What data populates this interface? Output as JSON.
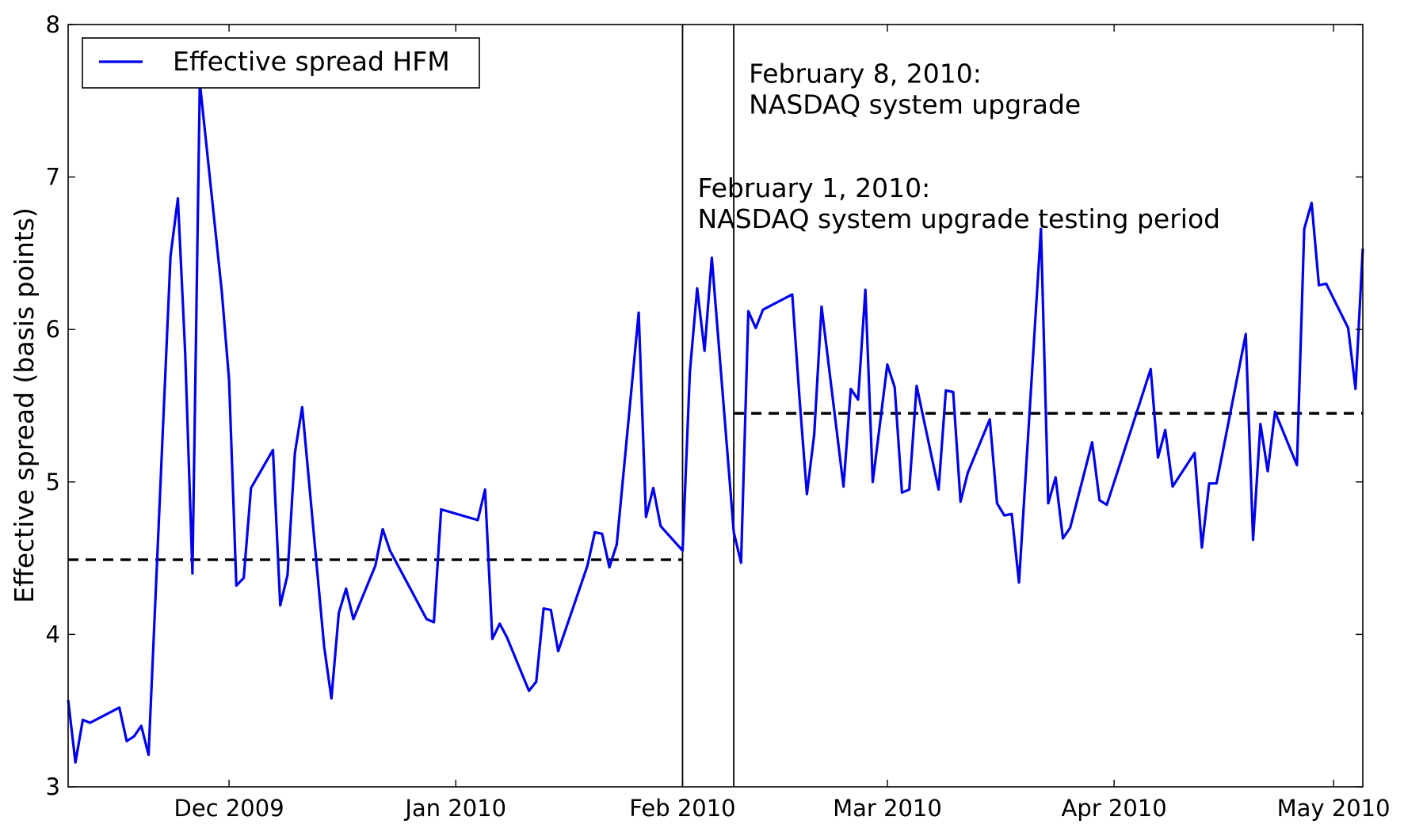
{
  "chart_data": {
    "type": "line",
    "title": "",
    "xlabel": "",
    "ylabel": "Effective spread (basis points)",
    "ylim": [
      3,
      8
    ],
    "xlim": [
      "2009-11-09",
      "2010-05-05"
    ],
    "x_ticks": [
      {
        "date": "2009-12-01",
        "label": "Dec 2009"
      },
      {
        "date": "2010-01-01",
        "label": "Jan 2010"
      },
      {
        "date": "2010-02-01",
        "label": "Feb 2010"
      },
      {
        "date": "2010-03-01",
        "label": "Mar 2010"
      },
      {
        "date": "2010-04-01",
        "label": "Apr 2010"
      },
      {
        "date": "2010-05-01",
        "label": "May 2010"
      }
    ],
    "y_ticks": [
      3,
      4,
      5,
      6,
      7,
      8
    ],
    "grid": false,
    "legend_position": "top-left",
    "series": [
      {
        "name": "Effective spread HFM",
        "color": "#0000ee",
        "points": [
          [
            "2009-11-09",
            3.57
          ],
          [
            "2009-11-10",
            3.16
          ],
          [
            "2009-11-11",
            3.44
          ],
          [
            "2009-11-12",
            3.42
          ],
          [
            "2009-11-16",
            3.52
          ],
          [
            "2009-11-17",
            3.3
          ],
          [
            "2009-11-18",
            3.33
          ],
          [
            "2009-11-19",
            3.4
          ],
          [
            "2009-11-20",
            3.21
          ],
          [
            "2009-11-23",
            6.48
          ],
          [
            "2009-11-24",
            6.86
          ],
          [
            "2009-11-25",
            5.85
          ],
          [
            "2009-11-26",
            4.4
          ],
          [
            "2009-11-27",
            7.62
          ],
          [
            "2009-11-30",
            6.25
          ],
          [
            "2009-12-01",
            5.67
          ],
          [
            "2009-12-02",
            4.32
          ],
          [
            "2009-12-03",
            4.37
          ],
          [
            "2009-12-04",
            4.96
          ],
          [
            "2009-12-07",
            5.21
          ],
          [
            "2009-12-08",
            4.19
          ],
          [
            "2009-12-09",
            4.39
          ],
          [
            "2009-12-10",
            5.19
          ],
          [
            "2009-12-11",
            5.49
          ],
          [
            "2009-12-14",
            3.92
          ],
          [
            "2009-12-15",
            3.58
          ],
          [
            "2009-12-16",
            4.14
          ],
          [
            "2009-12-17",
            4.3
          ],
          [
            "2009-12-18",
            4.1
          ],
          [
            "2009-12-21",
            4.45
          ],
          [
            "2009-12-22",
            4.69
          ],
          [
            "2009-12-23",
            4.55
          ],
          [
            "2009-12-28",
            4.1
          ],
          [
            "2009-12-29",
            4.08
          ],
          [
            "2009-12-30",
            4.82
          ],
          [
            "2010-01-04",
            4.75
          ],
          [
            "2010-01-05",
            4.95
          ],
          [
            "2010-01-06",
            3.97
          ],
          [
            "2010-01-07",
            4.07
          ],
          [
            "2010-01-08",
            3.98
          ],
          [
            "2010-01-11",
            3.63
          ],
          [
            "2010-01-12",
            3.69
          ],
          [
            "2010-01-13",
            4.17
          ],
          [
            "2010-01-14",
            4.16
          ],
          [
            "2010-01-15",
            3.89
          ],
          [
            "2010-01-19",
            4.45
          ],
          [
            "2010-01-20",
            4.67
          ],
          [
            "2010-01-21",
            4.66
          ],
          [
            "2010-01-22",
            4.44
          ],
          [
            "2010-01-23",
            4.59
          ],
          [
            "2010-01-26",
            6.11
          ],
          [
            "2010-01-27",
            4.77
          ],
          [
            "2010-01-28",
            4.96
          ],
          [
            "2010-01-29",
            4.71
          ],
          [
            "2010-02-01",
            4.55
          ],
          [
            "2010-02-02",
            5.72
          ],
          [
            "2010-02-03",
            6.27
          ],
          [
            "2010-02-04",
            5.86
          ],
          [
            "2010-02-05",
            6.47
          ],
          [
            "2010-02-08",
            4.67
          ],
          [
            "2010-02-09",
            4.47
          ],
          [
            "2010-02-10",
            6.12
          ],
          [
            "2010-02-11",
            6.01
          ],
          [
            "2010-02-12",
            6.13
          ],
          [
            "2010-02-16",
            6.23
          ],
          [
            "2010-02-17",
            5.54
          ],
          [
            "2010-02-18",
            4.92
          ],
          [
            "2010-02-19",
            5.31
          ],
          [
            "2010-02-20",
            6.15
          ],
          [
            "2010-02-23",
            4.97
          ],
          [
            "2010-02-24",
            5.61
          ],
          [
            "2010-02-25",
            5.54
          ],
          [
            "2010-02-26",
            6.26
          ],
          [
            "2010-02-27",
            5.0
          ],
          [
            "2010-03-01",
            5.77
          ],
          [
            "2010-03-02",
            5.62
          ],
          [
            "2010-03-03",
            4.93
          ],
          [
            "2010-03-04",
            4.95
          ],
          [
            "2010-03-05",
            5.63
          ],
          [
            "2010-03-08",
            4.95
          ],
          [
            "2010-03-09",
            5.6
          ],
          [
            "2010-03-10",
            5.59
          ],
          [
            "2010-03-11",
            4.87
          ],
          [
            "2010-03-12",
            5.06
          ],
          [
            "2010-03-15",
            5.41
          ],
          [
            "2010-03-16",
            4.86
          ],
          [
            "2010-03-17",
            4.78
          ],
          [
            "2010-03-18",
            4.79
          ],
          [
            "2010-03-19",
            4.34
          ],
          [
            "2010-03-22",
            6.66
          ],
          [
            "2010-03-23",
            4.86
          ],
          [
            "2010-03-24",
            5.03
          ],
          [
            "2010-03-25",
            4.63
          ],
          [
            "2010-03-26",
            4.7
          ],
          [
            "2010-03-29",
            5.26
          ],
          [
            "2010-03-30",
            4.88
          ],
          [
            "2010-03-31",
            4.85
          ],
          [
            "2010-04-06",
            5.74
          ],
          [
            "2010-04-07",
            5.16
          ],
          [
            "2010-04-08",
            5.34
          ],
          [
            "2010-04-09",
            4.97
          ],
          [
            "2010-04-12",
            5.19
          ],
          [
            "2010-04-13",
            4.57
          ],
          [
            "2010-04-14",
            4.99
          ],
          [
            "2010-04-15",
            4.99
          ],
          [
            "2010-04-19",
            5.97
          ],
          [
            "2010-04-20",
            4.62
          ],
          [
            "2010-04-21",
            5.38
          ],
          [
            "2010-04-22",
            5.07
          ],
          [
            "2010-04-23",
            5.46
          ],
          [
            "2010-04-26",
            5.11
          ],
          [
            "2010-04-27",
            6.66
          ],
          [
            "2010-04-28",
            6.83
          ],
          [
            "2010-04-29",
            6.29
          ],
          [
            "2010-04-30",
            6.3
          ],
          [
            "2010-05-03",
            6.01
          ],
          [
            "2010-05-04",
            5.61
          ],
          [
            "2010-05-05",
            6.53
          ]
        ]
      }
    ],
    "mean_lines": [
      {
        "start": "2009-11-09",
        "end": "2010-02-01",
        "value": 4.49,
        "style": "dashed",
        "color": "#000000"
      },
      {
        "start": "2010-02-08",
        "end": "2010-05-05",
        "value": 5.45,
        "style": "dashed",
        "color": "#000000"
      }
    ],
    "vertical_lines": [
      {
        "date": "2010-02-01",
        "color": "#000000"
      },
      {
        "date": "2010-02-08",
        "color": "#000000"
      }
    ],
    "annotations": [
      {
        "date": "2010-02-08",
        "value": 7.68,
        "lines": [
          "February 8, 2010:",
          "NASDAQ system upgrade"
        ]
      },
      {
        "date": "2010-02-01",
        "value": 6.93,
        "lines": [
          "February 1, 2010:",
          "NASDAQ system upgrade testing period"
        ]
      }
    ]
  }
}
